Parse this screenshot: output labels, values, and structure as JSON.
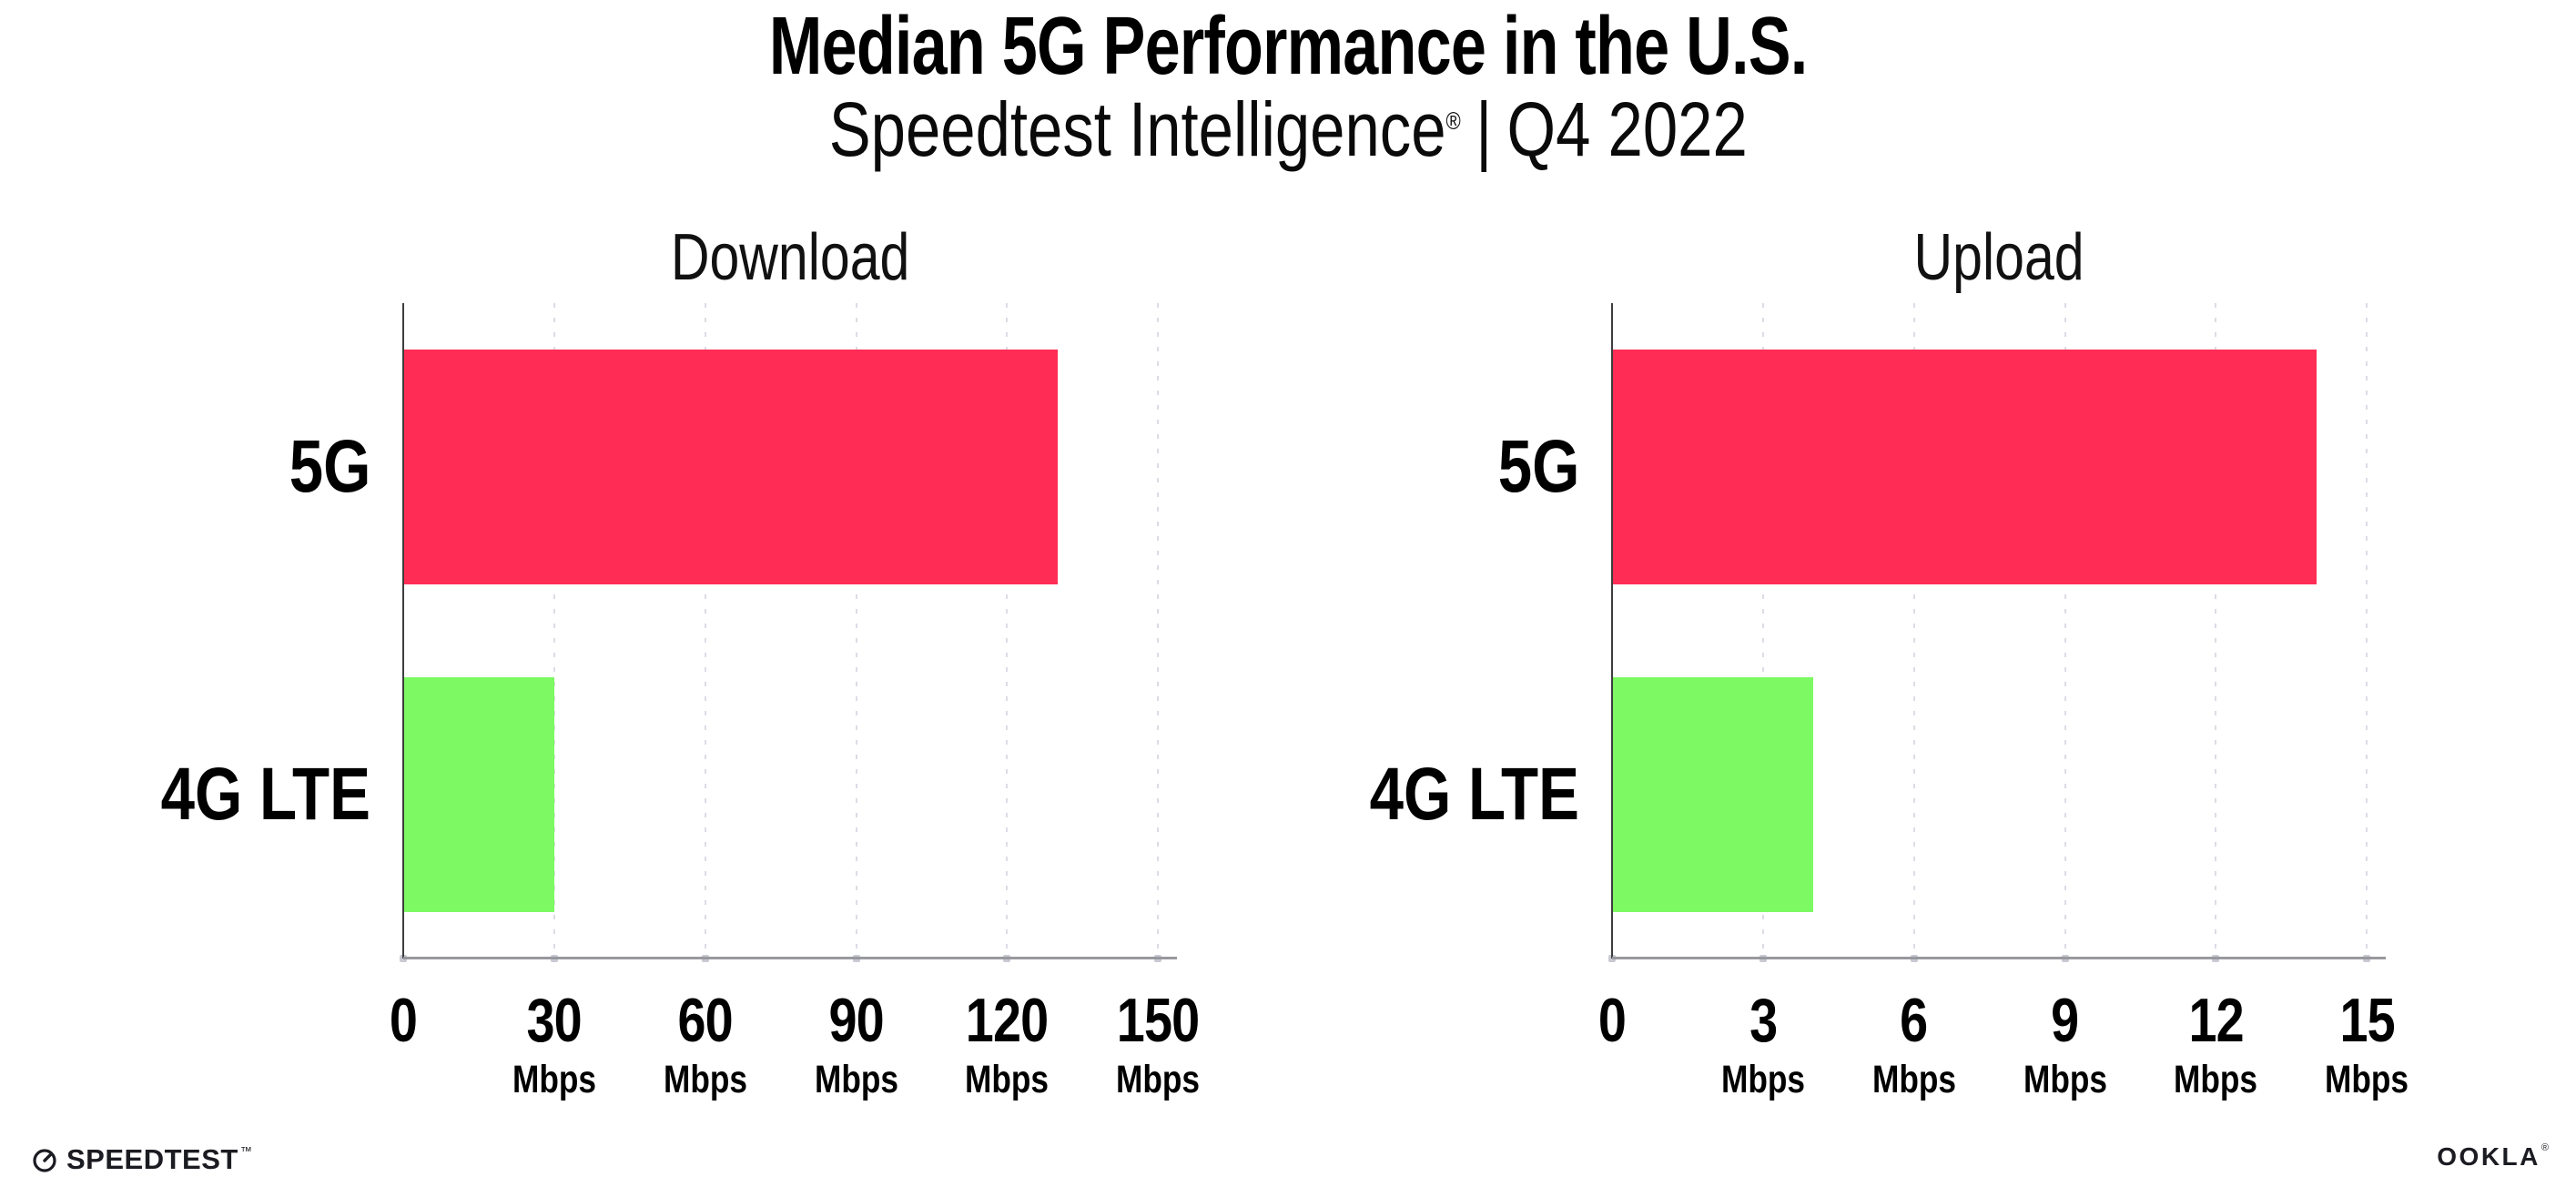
{
  "page": {
    "background": "#ffffff"
  },
  "header": {
    "title": "Median 5G Performance in the U.S.",
    "subtitle_brand": "Speedtest Intelligence",
    "subtitle_reg_mark": "®",
    "subtitle_separator": "|",
    "subtitle_period": "Q4 2022"
  },
  "chart_data": [
    {
      "type": "bar",
      "orientation": "horizontal",
      "title": "Download",
      "categories": [
        "5G",
        "4G LTE"
      ],
      "values": [
        130,
        30
      ],
      "unit": "Mbps",
      "ticks": [
        0,
        30,
        60,
        90,
        120,
        150
      ],
      "xlim": [
        0,
        153.75
      ],
      "bar_colors": [
        "#ff2d55",
        "#7dfa63"
      ],
      "grid": "dotted vertical lines at each tick except 0",
      "legend": "none"
    },
    {
      "type": "bar",
      "orientation": "horizontal",
      "title": "Upload",
      "categories": [
        "5G",
        "4G LTE"
      ],
      "values": [
        14,
        4
      ],
      "unit": "Mbps",
      "ticks": [
        0,
        3,
        6,
        9,
        12,
        15
      ],
      "xlim": [
        0,
        15.375
      ],
      "bar_colors": [
        "#ff2d55",
        "#7dfa63"
      ],
      "grid": "dotted vertical lines at each tick except 0",
      "legend": "none"
    }
  ],
  "footer": {
    "speedtest_logo_text": "SPEEDTEST",
    "speedtest_trademark": "™",
    "ookla_logo_text": "OOKLA",
    "ookla_registered_mark": "®"
  },
  "colors": {
    "bar_5g": "#ff2d55",
    "bar_4g_lte": "#7dfa63",
    "gridline": "#dcdce6",
    "y_axis": "#3d3d3d",
    "x_axis": "#98989f",
    "text": "#000000"
  }
}
